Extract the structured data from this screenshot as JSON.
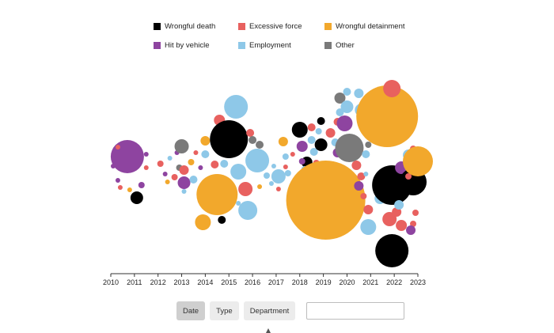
{
  "legend": {
    "items": [
      {
        "label": "Wrongful death",
        "color": "#000000"
      },
      {
        "label": "Excessive force",
        "color": "#e8615f"
      },
      {
        "label": "Wrongful detainment",
        "color": "#f2a82c"
      },
      {
        "label": "Hit by vehicle",
        "color": "#8e44a0"
      },
      {
        "label": "Employment",
        "color": "#8ec8e8"
      },
      {
        "label": "Other",
        "color": "#7a7a7a"
      }
    ]
  },
  "controls": {
    "date_label": "Date",
    "type_label": "Type",
    "department_label": "Department",
    "filter_value": ""
  },
  "chart_data": {
    "type": "scatter",
    "title": "",
    "xlabel": "",
    "ylabel": "",
    "x_ticks": [
      "2010",
      "2011",
      "2012",
      "2013",
      "2014",
      "2015",
      "2016",
      "2017",
      "2018",
      "2019",
      "2020",
      "2021",
      "2022",
      "2023"
    ],
    "xlim": [
      2010,
      2023
    ],
    "encoding": "bubbles positioned along x by date, bubble size proportional to amount, color by type",
    "colors": {
      "Wrongful death": "#000000",
      "Excessive force": "#e8615f",
      "Wrongful detainment": "#f2a82c",
      "Hit by vehicle": "#8e44a0",
      "Employment": "#8ec8e8",
      "Other": "#7a7a7a"
    },
    "bubbles": [
      {
        "x": 2010.7,
        "y": 17,
        "size": 21,
        "type": "Hit by vehicle"
      },
      {
        "x": 2011.1,
        "y": -35,
        "size": 8,
        "type": "Wrongful death"
      },
      {
        "x": 2010.3,
        "y": 29,
        "size": 3,
        "type": "Excessive force"
      },
      {
        "x": 2010.1,
        "y": 5,
        "size": 3,
        "type": "Hit by vehicle"
      },
      {
        "x": 2010.3,
        "y": -13,
        "size": 3,
        "type": "Hit by vehicle"
      },
      {
        "x": 2010.4,
        "y": -22,
        "size": 3,
        "type": "Excessive force"
      },
      {
        "x": 2010.8,
        "y": -25,
        "size": 3,
        "type": "Wrongful detainment"
      },
      {
        "x": 2011.3,
        "y": -19,
        "size": 4,
        "type": "Hit by vehicle"
      },
      {
        "x": 2011.5,
        "y": 3,
        "size": 3,
        "type": "Excessive force"
      },
      {
        "x": 2011.5,
        "y": 20,
        "size": 3,
        "type": "Hit by vehicle"
      },
      {
        "x": 2012.1,
        "y": 8,
        "size": 4,
        "type": "Excessive force"
      },
      {
        "x": 2012.3,
        "y": -5,
        "size": 3,
        "type": "Hit by vehicle"
      },
      {
        "x": 2012.4,
        "y": -15,
        "size": 3,
        "type": "Wrongful detainment"
      },
      {
        "x": 2012.5,
        "y": 15,
        "size": 3,
        "type": "Employment"
      },
      {
        "x": 2012.7,
        "y": -9,
        "size": 4,
        "type": "Excessive force"
      },
      {
        "x": 2012.8,
        "y": 22,
        "size": 3,
        "type": "Hit by vehicle"
      },
      {
        "x": 2012.9,
        "y": 3,
        "size": 4,
        "type": "Other"
      },
      {
        "x": 2013.0,
        "y": 30,
        "size": 9,
        "type": "Other"
      },
      {
        "x": 2013.1,
        "y": -16,
        "size": 8,
        "type": "Hit by vehicle"
      },
      {
        "x": 2013.1,
        "y": 0,
        "size": 6,
        "type": "Excessive force"
      },
      {
        "x": 2013.4,
        "y": 10,
        "size": 4,
        "type": "Wrongful detainment"
      },
      {
        "x": 2013.5,
        "y": -12,
        "size": 5,
        "type": "Employment"
      },
      {
        "x": 2013.6,
        "y": 22,
        "size": 3,
        "type": "Excessive force"
      },
      {
        "x": 2013.1,
        "y": -27,
        "size": 3,
        "type": "Employment"
      },
      {
        "x": 2013.8,
        "y": 3,
        "size": 3,
        "type": "Hit by vehicle"
      },
      {
        "x": 2014.0,
        "y": 37,
        "size": 6,
        "type": "Wrongful detainment"
      },
      {
        "x": 2014.0,
        "y": 20,
        "size": 5,
        "type": "Employment"
      },
      {
        "x": 2014.4,
        "y": 7,
        "size": 5,
        "type": "Excessive force"
      },
      {
        "x": 2014.5,
        "y": -31,
        "size": 26,
        "type": "Wrongful detainment"
      },
      {
        "x": 2013.9,
        "y": -66,
        "size": 10,
        "type": "Wrongful detainment"
      },
      {
        "x": 2014.7,
        "y": -63,
        "size": 5,
        "type": "Wrongful death"
      },
      {
        "x": 2014.8,
        "y": 8,
        "size": 5,
        "type": "Employment"
      },
      {
        "x": 2014.6,
        "y": 63,
        "size": 7,
        "type": "Excessive force"
      },
      {
        "x": 2015.0,
        "y": 39,
        "size": 24,
        "type": "Wrongful death"
      },
      {
        "x": 2015.3,
        "y": 80,
        "size": 15,
        "type": "Employment"
      },
      {
        "x": 2015.4,
        "y": -2,
        "size": 10,
        "type": "Employment"
      },
      {
        "x": 2015.7,
        "y": -24,
        "size": 9,
        "type": "Excessive force"
      },
      {
        "x": 2015.8,
        "y": -51,
        "size": 12,
        "type": "Employment"
      },
      {
        "x": 2015.4,
        "y": -42,
        "size": 3,
        "type": "Employment"
      },
      {
        "x": 2015.9,
        "y": 47,
        "size": 5,
        "type": "Excessive force"
      },
      {
        "x": 2016.0,
        "y": 19,
        "size": 3,
        "type": "Wrongful detainment"
      },
      {
        "x": 2016.0,
        "y": 38,
        "size": 5,
        "type": "Other"
      },
      {
        "x": 2016.2,
        "y": 12,
        "size": 15,
        "type": "Employment"
      },
      {
        "x": 2016.3,
        "y": -21,
        "size": 3,
        "type": "Wrongful detainment"
      },
      {
        "x": 2016.3,
        "y": 32,
        "size": 5,
        "type": "Other"
      },
      {
        "x": 2016.6,
        "y": -7,
        "size": 4,
        "type": "Employment"
      },
      {
        "x": 2016.8,
        "y": -17,
        "size": 3,
        "type": "Employment"
      },
      {
        "x": 2016.9,
        "y": 5,
        "size": 3,
        "type": "Employment"
      },
      {
        "x": 2017.1,
        "y": -8,
        "size": 9,
        "type": "Employment"
      },
      {
        "x": 2017.1,
        "y": -24,
        "size": 3,
        "type": "Excessive force"
      },
      {
        "x": 2017.3,
        "y": 36,
        "size": 6,
        "type": "Wrongful detainment"
      },
      {
        "x": 2017.4,
        "y": 17,
        "size": 4,
        "type": "Employment"
      },
      {
        "x": 2017.4,
        "y": 4,
        "size": 3,
        "type": "Excessive force"
      },
      {
        "x": 2017.5,
        "y": -4,
        "size": 4,
        "type": "Employment"
      },
      {
        "x": 2017.7,
        "y": 20,
        "size": 3,
        "type": "Excessive force"
      },
      {
        "x": 2018.0,
        "y": 51,
        "size": 10,
        "type": "Wrongful death"
      },
      {
        "x": 2018.1,
        "y": 30,
        "size": 7,
        "type": "Hit by vehicle"
      },
      {
        "x": 2018.3,
        "y": 10,
        "size": 7,
        "type": "Wrongful death"
      },
      {
        "x": 2018.1,
        "y": 11,
        "size": 4,
        "type": "Hit by vehicle"
      },
      {
        "x": 2018.2,
        "y": 1,
        "size": 4,
        "type": "Employment"
      },
      {
        "x": 2018.5,
        "y": 38,
        "size": 5,
        "type": "Employment"
      },
      {
        "x": 2018.5,
        "y": 54,
        "size": 5,
        "type": "Excessive force"
      },
      {
        "x": 2018.6,
        "y": 23,
        "size": 5,
        "type": "Employment"
      },
      {
        "x": 2018.7,
        "y": 9,
        "size": 4,
        "type": "Excessive force"
      },
      {
        "x": 2018.9,
        "y": 32,
        "size": 8,
        "type": "Wrongful death"
      },
      {
        "x": 2018.9,
        "y": 62,
        "size": 5,
        "type": "Wrongful death"
      },
      {
        "x": 2018.8,
        "y": 49,
        "size": 4,
        "type": "Employment"
      },
      {
        "x": 2019.1,
        "y": -38,
        "size": 50,
        "type": "Wrongful detainment"
      },
      {
        "x": 2019.3,
        "y": 47,
        "size": 6,
        "type": "Excessive force"
      },
      {
        "x": 2019.6,
        "y": 22,
        "size": 6,
        "type": "Hit by vehicle"
      },
      {
        "x": 2019.5,
        "y": 35,
        "size": 5,
        "type": "Employment"
      },
      {
        "x": 2019.6,
        "y": 61,
        "size": 5,
        "type": "Excessive force"
      },
      {
        "x": 2019.7,
        "y": 91,
        "size": 7,
        "type": "Other"
      },
      {
        "x": 2019.9,
        "y": 59,
        "size": 10,
        "type": "Hit by vehicle"
      },
      {
        "x": 2020.0,
        "y": 80,
        "size": 8,
        "type": "Employment"
      },
      {
        "x": 2020.0,
        "y": 99,
        "size": 5,
        "type": "Employment"
      },
      {
        "x": 2019.7,
        "y": 73,
        "size": 5,
        "type": "Employment"
      },
      {
        "x": 2020.1,
        "y": 28,
        "size": 18,
        "type": "Other"
      },
      {
        "x": 2020.4,
        "y": 6,
        "size": 6,
        "type": "Excessive force"
      },
      {
        "x": 2020.5,
        "y": 97,
        "size": 6,
        "type": "Employment"
      },
      {
        "x": 2020.6,
        "y": 76,
        "size": 8,
        "type": "Employment"
      },
      {
        "x": 2020.6,
        "y": -8,
        "size": 5,
        "type": "Excessive force"
      },
      {
        "x": 2020.5,
        "y": -20,
        "size": 6,
        "type": "Hit by vehicle"
      },
      {
        "x": 2020.8,
        "y": 20,
        "size": 5,
        "type": "Employment"
      },
      {
        "x": 2020.9,
        "y": 32,
        "size": 4,
        "type": "Other"
      },
      {
        "x": 2020.8,
        "y": -5,
        "size": 3,
        "type": "Employment"
      },
      {
        "x": 2020.7,
        "y": -33,
        "size": 4,
        "type": "Excessive force"
      },
      {
        "x": 2020.9,
        "y": -50,
        "size": 6,
        "type": "Excessive force"
      },
      {
        "x": 2020.9,
        "y": -72,
        "size": 10,
        "type": "Employment"
      },
      {
        "x": 2021.4,
        "y": -36,
        "size": 7,
        "type": "Employment"
      },
      {
        "x": 2021.7,
        "y": 68,
        "size": 39,
        "type": "Wrongful detainment"
      },
      {
        "x": 2021.9,
        "y": 103,
        "size": 11,
        "type": "Excessive force"
      },
      {
        "x": 2021.9,
        "y": -19,
        "size": 25,
        "type": "Wrongful death"
      },
      {
        "x": 2021.9,
        "y": -102,
        "size": 21,
        "type": "Wrongful death"
      },
      {
        "x": 2021.8,
        "y": -62,
        "size": 9,
        "type": "Excessive force"
      },
      {
        "x": 2022.1,
        "y": -53,
        "size": 6,
        "type": "Excessive force"
      },
      {
        "x": 2022.2,
        "y": -44,
        "size": 6,
        "type": "Employment"
      },
      {
        "x": 2022.3,
        "y": 3,
        "size": 8,
        "type": "Hit by vehicle"
      },
      {
        "x": 2022.3,
        "y": -70,
        "size": 7,
        "type": "Excessive force"
      },
      {
        "x": 2022.6,
        "y": 19,
        "size": 7,
        "type": "Employment"
      },
      {
        "x": 2022.8,
        "y": -15,
        "size": 17,
        "type": "Wrongful death"
      },
      {
        "x": 2022.6,
        "y": -8,
        "size": 4,
        "type": "Excessive force"
      },
      {
        "x": 2022.8,
        "y": 27,
        "size": 4,
        "type": "Excessive force"
      },
      {
        "x": 2023.0,
        "y": 11,
        "size": 19,
        "type": "Wrongful detainment"
      },
      {
        "x": 2022.8,
        "y": -68,
        "size": 4,
        "type": "Excessive force"
      },
      {
        "x": 2022.7,
        "y": -76,
        "size": 6,
        "type": "Hit by vehicle"
      },
      {
        "x": 2022.9,
        "y": -54,
        "size": 4,
        "type": "Excessive force"
      }
    ]
  }
}
